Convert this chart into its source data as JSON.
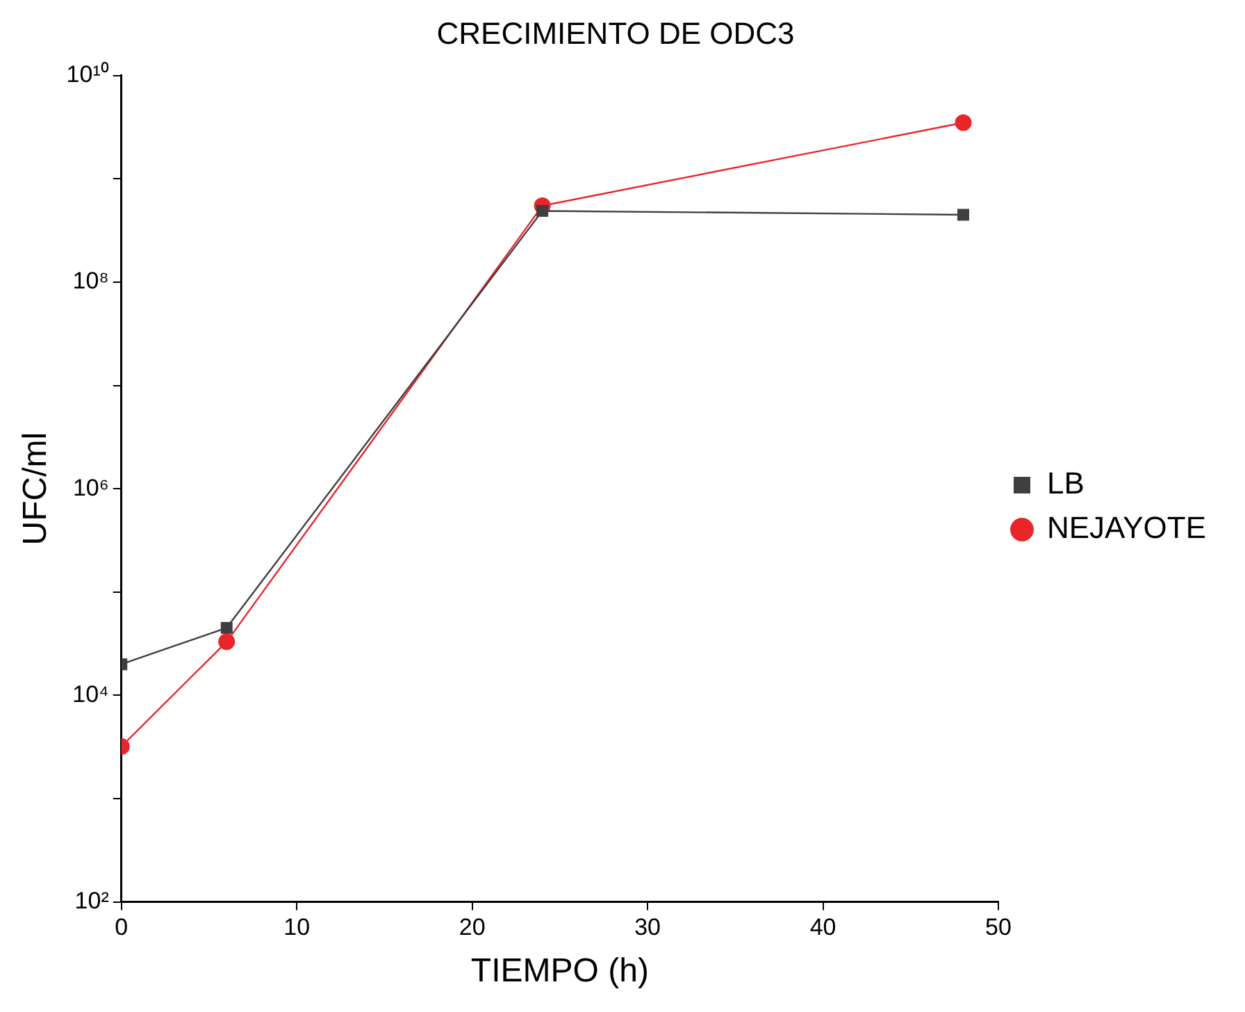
{
  "chart_data": {
    "type": "line",
    "title": "CRECIMIENTO DE ODC3",
    "xlabel": "TIEMPO (h)",
    "ylabel": "UFC/ml",
    "log": "y",
    "x": [
      0,
      6,
      24,
      48
    ],
    "xlim": [
      0,
      50
    ],
    "xticks": [
      0,
      10,
      20,
      30,
      40,
      50
    ],
    "ylim": [
      100,
      10000000000
    ],
    "yticks": [
      {
        "value": 100,
        "label": "10²"
      },
      {
        "value": 1000,
        "label": null
      },
      {
        "value": 10000,
        "label": "10⁴"
      },
      {
        "value": 100000,
        "label": null
      },
      {
        "value": 1000000,
        "label": "10⁶"
      },
      {
        "value": 10000000,
        "label": null
      },
      {
        "value": 100000000,
        "label": "10⁸"
      },
      {
        "value": 1000000000,
        "label": null
      },
      {
        "value": 10000000000,
        "label": "10¹⁰"
      }
    ],
    "grid": false,
    "legend": "right",
    "line_style": "solid",
    "series": [
      {
        "name": "LB",
        "color": "#3f3f3f",
        "marker": "square",
        "values": [
          20000,
          45000,
          490000000,
          450000000
        ]
      },
      {
        "name": "NEJAYOTE",
        "color": "#e8262a",
        "marker": "circle",
        "values": [
          3200,
          33000,
          550000000,
          3500000000
        ]
      }
    ]
  }
}
